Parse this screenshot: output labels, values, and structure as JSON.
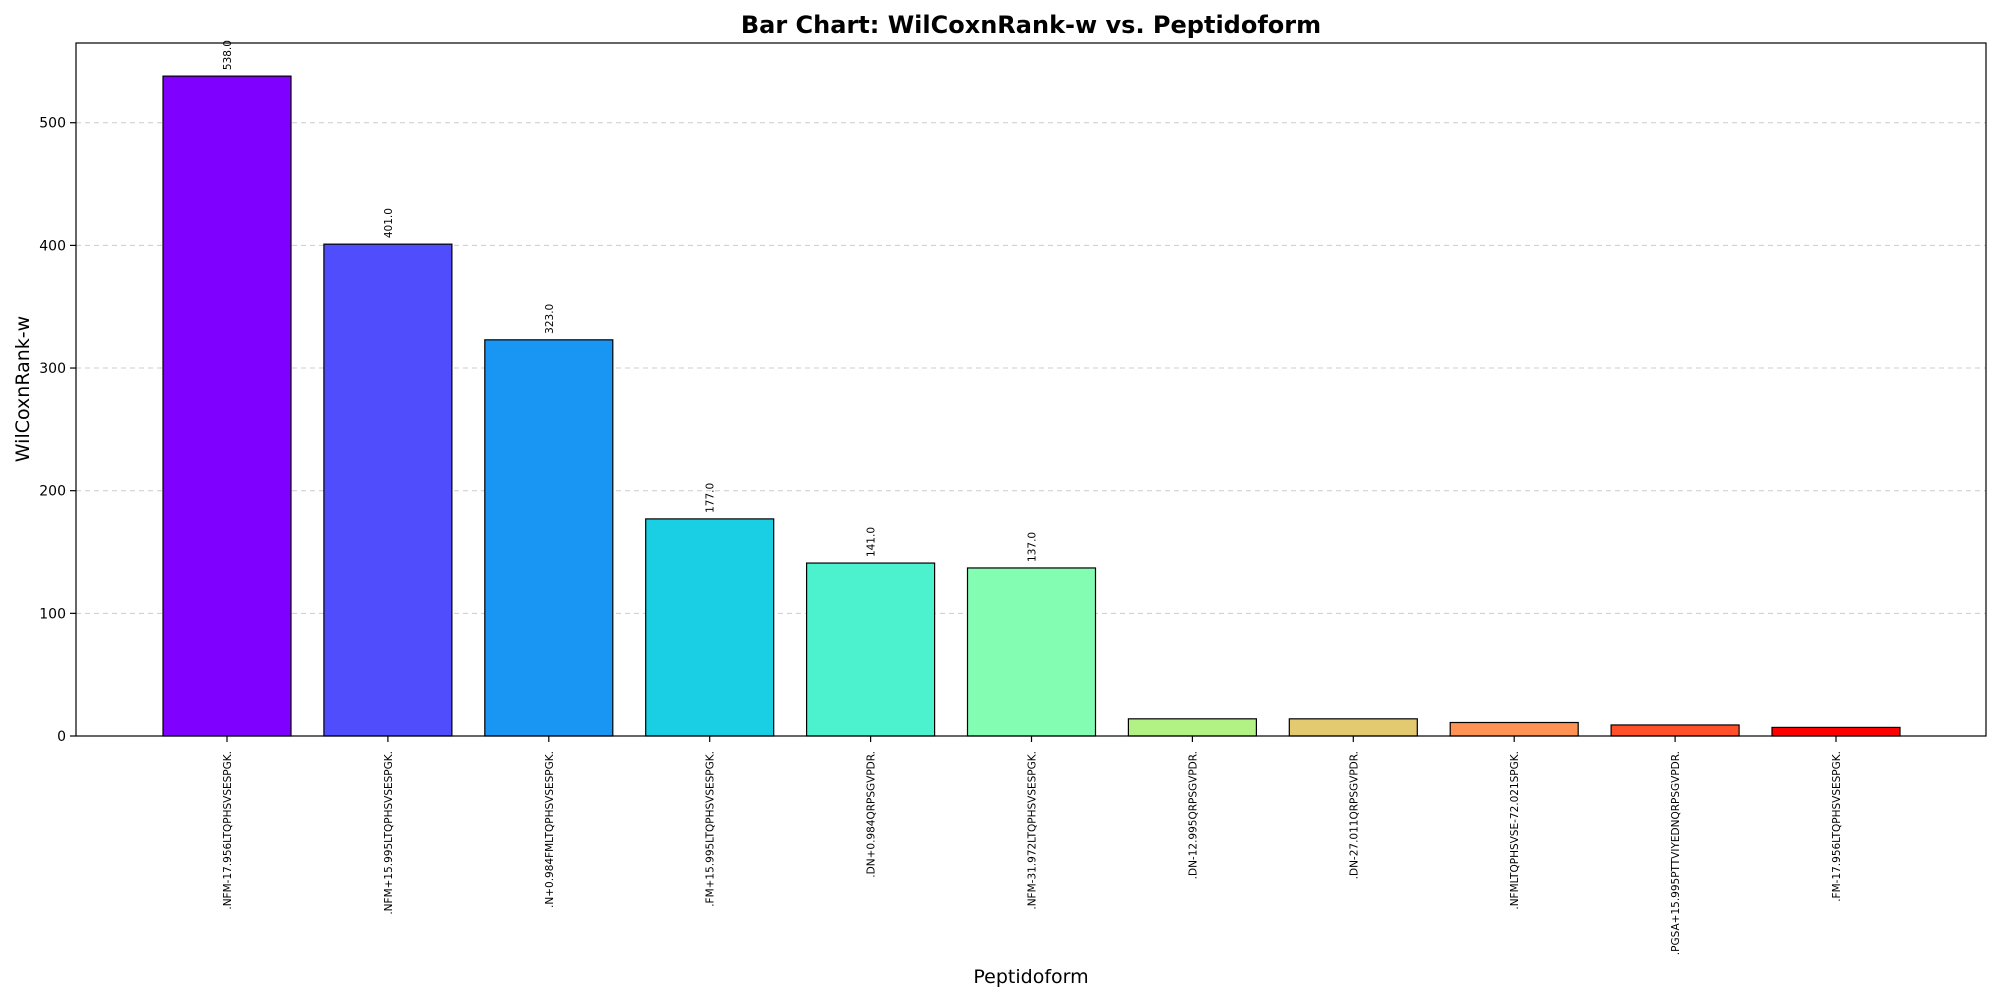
{
  "chart_data": {
    "type": "bar",
    "title": "Bar Chart: WilCoxnRank-w vs. Peptidoform",
    "xlabel": "Peptidoform",
    "ylabel": "WilCoxnRank-w",
    "ylim": [
      0,
      565
    ],
    "yticks": [
      0,
      100,
      200,
      300,
      400,
      500
    ],
    "grid": "y-dashed",
    "categories": [
      ".NFM-17.956LTQPHSVSESPGK.",
      ".NFM+15.995LTQPHSVSESPGK.",
      ".N+0.984FMLTQPHSVSESPGK.",
      ".FM+15.995LTQPHSVSESPGK.",
      ".DN+0.984QRPSGVPDR.",
      ".NFM-31.972LTQPHSVSESPGK.",
      ".DN-12.995QRPSGVPDR.",
      ".DN-27.011QRPSGVPDR.",
      ".NFMLTQPHSVSE-72.021SPGK.",
      ".PGSA+15.995PTTVIYEDNQRPSGVPDR.",
      ".FM-17.956LTQPHSVSESPGK."
    ],
    "values": [
      538.0,
      401.0,
      323.0,
      177.0,
      141.0,
      137.0,
      14.0,
      14.0,
      11.0,
      9.0,
      7.0
    ],
    "value_labels": [
      "538.0",
      "401.0",
      "323.0",
      "177.0",
      "141.0",
      "137.0",
      "",
      "",
      "",
      "",
      ""
    ],
    "colors": [
      "#8000ff",
      "#504efc",
      "#1996f3",
      "#1acfe3",
      "#4cf2ce",
      "#82fdb1",
      "#b2f285",
      "#e3c96f",
      "#ff9255",
      "#ff502a",
      "#ff0000"
    ]
  }
}
